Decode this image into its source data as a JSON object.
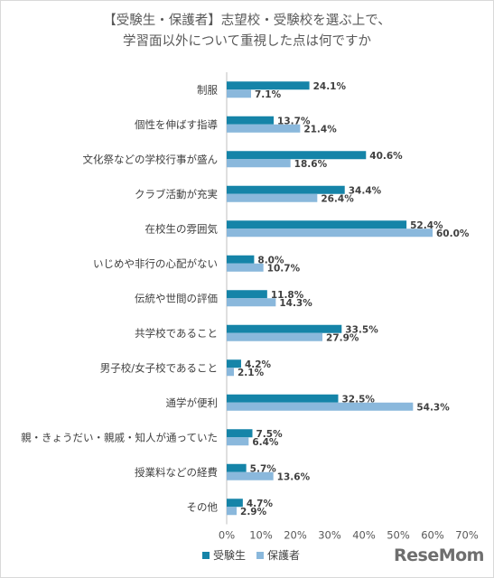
{
  "chart_data": {
    "type": "bar",
    "orientation": "horizontal",
    "title_line1": "【受験生・保護者】志望校・受験校を選ぶ上で、",
    "title_line2": "学習面以外について重視した点は何ですか",
    "categories": [
      "制服",
      "個性を伸ばす指導",
      "文化祭などの学校行事が盛ん",
      "クラブ活動が充実",
      "在校生の雰囲気",
      "いじめや非行の心配がない",
      "伝統や世間の評価",
      "共学校であること",
      "男子校/女子校であること",
      "通学が便利",
      "親・きょうだい・親戚・知人が通っていた",
      "授業料などの経費",
      "その他"
    ],
    "series": [
      {
        "name": "受験生",
        "color": "#1584a8",
        "values": [
          24.1,
          13.7,
          40.6,
          34.4,
          52.4,
          8.0,
          11.8,
          33.5,
          4.2,
          32.5,
          7.5,
          5.7,
          4.7
        ]
      },
      {
        "name": "保護者",
        "color": "#8ab8dc",
        "values": [
          7.1,
          21.4,
          18.6,
          26.4,
          60.0,
          10.7,
          14.3,
          27.9,
          2.1,
          54.3,
          6.4,
          13.6,
          2.9
        ]
      }
    ],
    "xlim": [
      0,
      70
    ],
    "xticks": [
      "0%",
      "10%",
      "20%",
      "30%",
      "40%",
      "50%",
      "60%",
      "70%"
    ],
    "value_suffix": "%",
    "legend_position": "bottom",
    "grid": false
  },
  "brand": {
    "logo_text": "ReseMom"
  }
}
